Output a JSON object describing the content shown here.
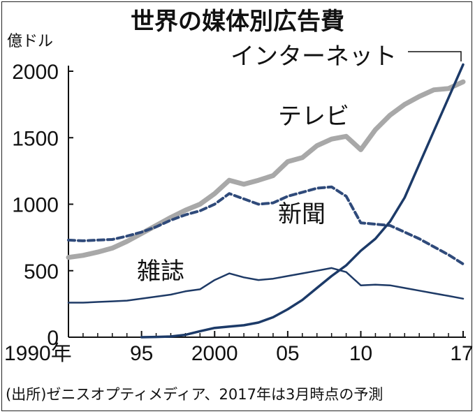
{
  "chart_data": {
    "type": "line",
    "title": "世界の媒体別広告費",
    "ylabel": "億ドル",
    "xlabel": "",
    "ylim": [
      0,
      2000
    ],
    "xlim": [
      1990,
      2017
    ],
    "yticks": [
      0,
      500,
      1000,
      1500,
      2000
    ],
    "ytick_labels": [
      "0",
      "500",
      "1000",
      "1500",
      "2000"
    ],
    "xticks": [
      1990,
      1995,
      2000,
      2005,
      2010,
      2017
    ],
    "xtick_labels": [
      "1990年",
      "95",
      "2000",
      "05",
      "10",
      "17"
    ],
    "source": "(出所)ゼニスオプティメディア、2017年は3月時点の予測",
    "series": [
      {
        "name": "テレビ",
        "color": "#a8a8a8",
        "style": "solid",
        "x": [
          1990,
          1991,
          1992,
          1993,
          1994,
          1995,
          1996,
          1997,
          1998,
          1999,
          2000,
          2001,
          2002,
          2003,
          2004,
          2005,
          2006,
          2007,
          2008,
          2009,
          2010,
          2011,
          2012,
          2013,
          2014,
          2015,
          2016,
          2017
        ],
        "values": [
          600,
          615,
          640,
          670,
          720,
          780,
          840,
          900,
          955,
          1000,
          1080,
          1180,
          1150,
          1180,
          1215,
          1320,
          1350,
          1440,
          1490,
          1510,
          1410,
          1560,
          1670,
          1750,
          1810,
          1860,
          1870,
          1920
        ]
      },
      {
        "name": "新聞",
        "color": "#2f4a7a",
        "style": "dashed",
        "x": [
          1990,
          1991,
          1992,
          1993,
          1994,
          1995,
          1996,
          1997,
          1998,
          1999,
          2000,
          2001,
          2002,
          2003,
          2004,
          2005,
          2006,
          2007,
          2008,
          2009,
          2010,
          2011,
          2012,
          2013,
          2014,
          2015,
          2016,
          2017
        ],
        "values": [
          730,
          725,
          730,
          735,
          760,
          790,
          830,
          880,
          920,
          950,
          1000,
          1080,
          1040,
          1000,
          1010,
          1060,
          1090,
          1120,
          1130,
          1060,
          860,
          850,
          840,
          790,
          740,
          680,
          620,
          550
        ]
      },
      {
        "name": "雑誌",
        "color": "#1e3a66",
        "style": "solid",
        "x": [
          1990,
          1991,
          1992,
          1993,
          1994,
          1995,
          1996,
          1997,
          1998,
          1999,
          2000,
          2001,
          2002,
          2003,
          2004,
          2005,
          2006,
          2007,
          2008,
          2009,
          2010,
          2011,
          2012,
          2013,
          2014,
          2015,
          2016,
          2017
        ],
        "values": [
          260,
          260,
          265,
          270,
          275,
          290,
          305,
          320,
          345,
          360,
          430,
          480,
          450,
          430,
          440,
          460,
          480,
          500,
          520,
          490,
          390,
          395,
          390,
          370,
          350,
          330,
          310,
          290
        ]
      },
      {
        "name": "インターネット",
        "color": "#1c3a68",
        "style": "solid",
        "x": [
          1995,
          1996,
          1997,
          1998,
          1999,
          2000,
          2001,
          2002,
          2003,
          2004,
          2005,
          2006,
          2007,
          2008,
          2009,
          2010,
          2011,
          2012,
          2013,
          2014,
          2015,
          2016,
          2017
        ],
        "values": [
          0,
          2,
          5,
          18,
          45,
          70,
          80,
          90,
          110,
          150,
          210,
          280,
          370,
          460,
          540,
          650,
          740,
          870,
          1050,
          1300,
          1550,
          1800,
          2050
        ]
      }
    ]
  }
}
